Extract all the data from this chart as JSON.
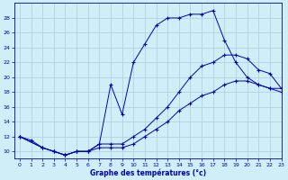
{
  "xlabel": "Graphe des températures (°c)",
  "bg_color": "#d0eef8",
  "line_color": "#0000bb",
  "grid_color": "#aaccdd",
  "ylim": [
    9,
    30
  ],
  "xlim": [
    -0.5,
    23
  ],
  "yticks": [
    10,
    12,
    14,
    16,
    18,
    20,
    22,
    24,
    26,
    28
  ],
  "xticks": [
    0,
    1,
    2,
    3,
    4,
    5,
    6,
    7,
    8,
    9,
    10,
    11,
    12,
    13,
    14,
    15,
    16,
    17,
    18,
    19,
    20,
    21,
    22,
    23
  ],
  "line1_x": [
    0,
    1,
    2,
    3,
    4,
    5,
    6,
    7,
    8,
    9,
    10,
    11,
    12,
    13,
    14,
    15,
    16,
    17,
    18,
    19,
    20,
    21,
    22,
    23
  ],
  "line1_y": [
    12,
    11.5,
    10.5,
    10,
    9.5,
    10,
    10,
    11,
    19,
    15,
    22,
    24.5,
    27,
    28,
    28,
    28.5,
    28.5,
    29,
    25,
    22,
    20,
    19,
    18.5,
    18
  ],
  "line2_x": [
    0,
    2,
    3,
    4,
    5,
    6,
    7,
    8,
    9,
    10,
    11,
    12,
    13,
    14,
    15,
    16,
    17,
    18,
    19,
    20,
    21,
    22,
    23
  ],
  "line2_y": [
    12,
    10.5,
    10,
    9.5,
    10,
    10,
    11,
    11,
    11,
    12,
    13,
    14.5,
    16,
    18,
    20,
    21.5,
    22,
    23,
    23,
    22.5,
    21,
    20.5,
    18.5
  ],
  "line3_x": [
    0,
    2,
    3,
    4,
    5,
    6,
    7,
    8,
    9,
    10,
    11,
    12,
    13,
    14,
    15,
    16,
    17,
    18,
    19,
    20,
    21,
    22,
    23
  ],
  "line3_y": [
    12,
    10.5,
    10,
    9.5,
    10,
    10,
    10.5,
    10.5,
    10.5,
    11,
    12,
    13,
    14,
    15.5,
    16.5,
    17.5,
    18,
    19,
    19.5,
    19.5,
    19,
    18.5,
    18.5
  ]
}
